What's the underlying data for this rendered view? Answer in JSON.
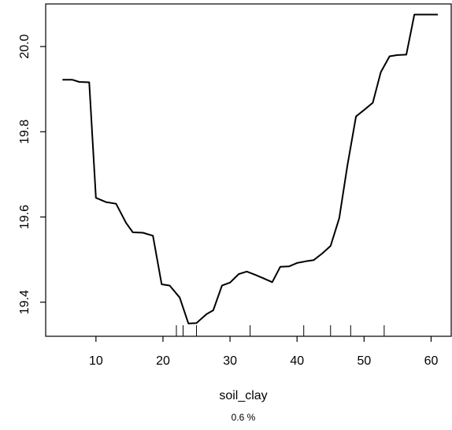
{
  "chart_data": {
    "type": "line",
    "title": "",
    "xlabel": "soil_clay",
    "ylabel": "",
    "subtitle": "0.6 %",
    "xlim": [
      2.5,
      63
    ],
    "ylim": [
      19.32,
      20.1
    ],
    "x_ticks": [
      10,
      20,
      30,
      40,
      50,
      60
    ],
    "y_ticks": [
      19.4,
      19.6,
      19.8,
      20.0
    ],
    "y_tick_labels": [
      "19.4",
      "19.6",
      "19.8",
      "20.0"
    ],
    "grid": false,
    "series": [
      {
        "x": [
          5,
          6.5,
          7.5,
          9,
          10,
          11.5,
          13,
          14.5,
          15.5,
          17,
          18.5,
          19.8,
          21,
          22.5,
          23.8,
          25,
          26.5,
          27.5,
          28.8,
          30,
          31.3,
          32.5,
          33.8,
          35,
          36.3,
          37.5,
          38.8,
          40,
          41.3,
          42.5,
          43.8,
          45,
          46.3,
          47.5,
          48.8,
          50,
          51.3,
          52.5,
          53.8,
          55,
          56.3,
          57.5,
          58.8,
          60,
          61
        ],
        "y": [
          19.922,
          19.922,
          19.917,
          19.916,
          19.645,
          19.635,
          19.631,
          19.586,
          19.564,
          19.563,
          19.556,
          19.442,
          19.439,
          19.411,
          19.35,
          19.351,
          19.372,
          19.381,
          19.439,
          19.446,
          19.466,
          19.472,
          19.464,
          19.456,
          19.447,
          19.483,
          19.484,
          19.492,
          19.496,
          19.499,
          19.515,
          19.532,
          19.597,
          19.72,
          19.836,
          19.851,
          19.868,
          19.94,
          19.977,
          19.98,
          19.981,
          20.075,
          20.075,
          20.075,
          20.075
        ]
      }
    ],
    "rug": [
      22,
      23,
      25,
      33,
      41,
      45,
      48,
      53
    ]
  }
}
